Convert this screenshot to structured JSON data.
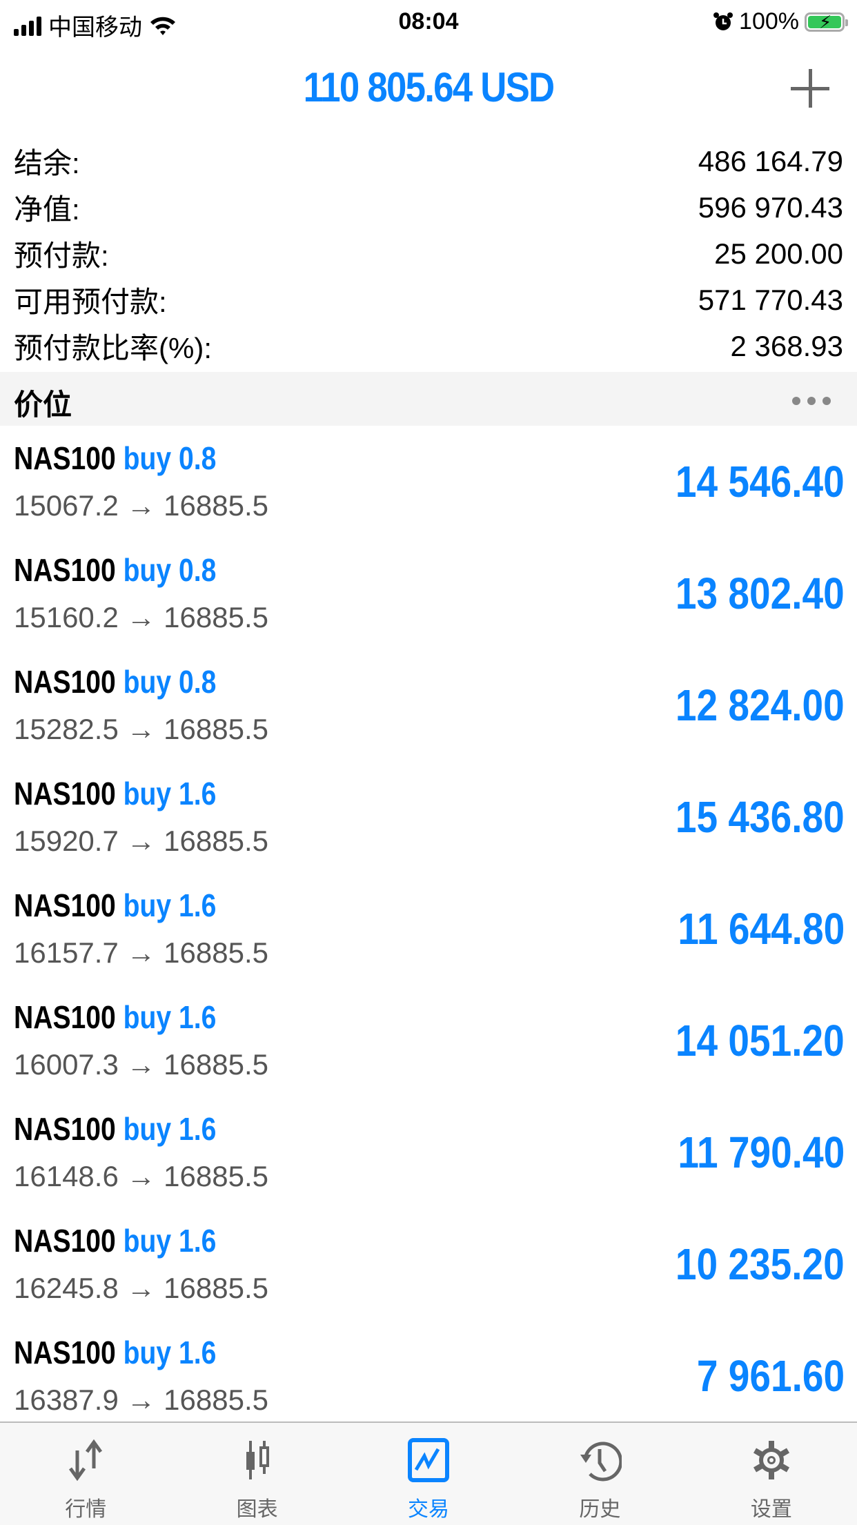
{
  "status_bar": {
    "carrier": "中国移动",
    "time": "08:04",
    "battery": "100%",
    "icons": [
      "signal-icon",
      "wifi-icon",
      "alarm-icon",
      "battery-charging-icon"
    ]
  },
  "header": {
    "title": "110 805.64 USD",
    "add_icon": "plus-icon"
  },
  "summary": [
    {
      "label": "结余:",
      "value": "486 164.79"
    },
    {
      "label": "净值:",
      "value": "596 970.43"
    },
    {
      "label": "预付款:",
      "value": "25 200.00"
    },
    {
      "label": "可用预付款:",
      "value": "571 770.43"
    },
    {
      "label": "预付款比率(%):",
      "value": "2 368.93"
    }
  ],
  "positions_section": {
    "title": "价位",
    "more_icon": "more-dots-icon"
  },
  "positions": [
    {
      "symbol": "NAS100",
      "side": "buy 0.8",
      "prices": "15067.2 → 16885.5",
      "profit": "14 546.40"
    },
    {
      "symbol": "NAS100",
      "side": "buy 0.8",
      "prices": "15160.2 → 16885.5",
      "profit": "13 802.40"
    },
    {
      "symbol": "NAS100",
      "side": "buy 0.8",
      "prices": "15282.5 → 16885.5",
      "profit": "12 824.00"
    },
    {
      "symbol": "NAS100",
      "side": "buy 1.6",
      "prices": "15920.7 → 16885.5",
      "profit": "15 436.80"
    },
    {
      "symbol": "NAS100",
      "side": "buy 1.6",
      "prices": "16157.7 → 16885.5",
      "profit": "11 644.80"
    },
    {
      "symbol": "NAS100",
      "side": "buy 1.6",
      "prices": "16007.3 → 16885.5",
      "profit": "14 051.20"
    },
    {
      "symbol": "NAS100",
      "side": "buy 1.6",
      "prices": "16148.6 → 16885.5",
      "profit": "11 790.40"
    },
    {
      "symbol": "NAS100",
      "side": "buy 1.6",
      "prices": "16245.8 → 16885.5",
      "profit": "10 235.20"
    },
    {
      "symbol": "NAS100",
      "side": "buy 1.6",
      "prices": "16387.9 → 16885.5",
      "profit": "7 961.60"
    }
  ],
  "tabs": [
    {
      "label": "行情",
      "icon": "quotes-arrows-icon"
    },
    {
      "label": "图表",
      "icon": "candlestick-chart-icon"
    },
    {
      "label": "交易",
      "icon": "trade-chart-icon",
      "active": true
    },
    {
      "label": "历史",
      "icon": "history-clock-icon"
    },
    {
      "label": "设置",
      "icon": "gear-icon"
    }
  ],
  "colors": {
    "accent": "#0a84ff",
    "tab_inactive": "#666666",
    "section_bg": "#f4f4f4",
    "battery": "#34c759"
  }
}
